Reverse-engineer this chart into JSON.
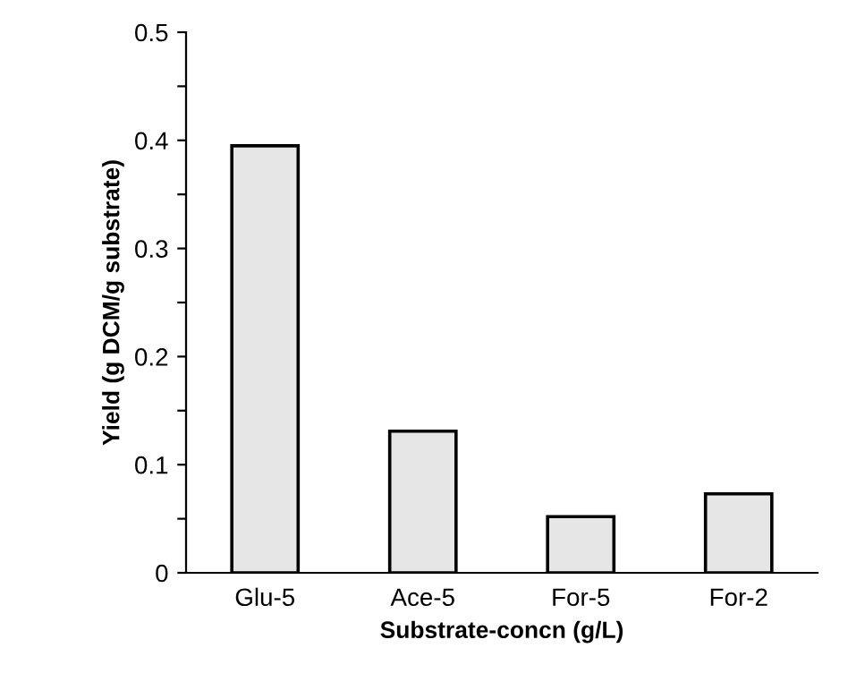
{
  "chart_data": {
    "type": "bar",
    "xlabel": "Substrate-concn (g/L)",
    "ylabel": "Yield (g DCM/g substrate)",
    "categories": [
      "Glu-5",
      "Ace-5",
      "For-5",
      "For-2"
    ],
    "values": [
      0.395,
      0.131,
      0.052,
      0.073
    ],
    "color": "#e6e6e6",
    "ylim": [
      0,
      0.5
    ],
    "yticks": [
      0,
      {
        "value": 0.05,
        "label": null
      },
      0.1,
      {
        "value": 0.15,
        "label": null
      },
      0.2,
      {
        "value": 0.25,
        "label": null
      },
      0.3,
      {
        "value": 0.35,
        "label": null
      },
      0.4,
      {
        "value": 0.45,
        "label": null
      },
      0.5
    ],
    "grid": false,
    "legend": false
  }
}
